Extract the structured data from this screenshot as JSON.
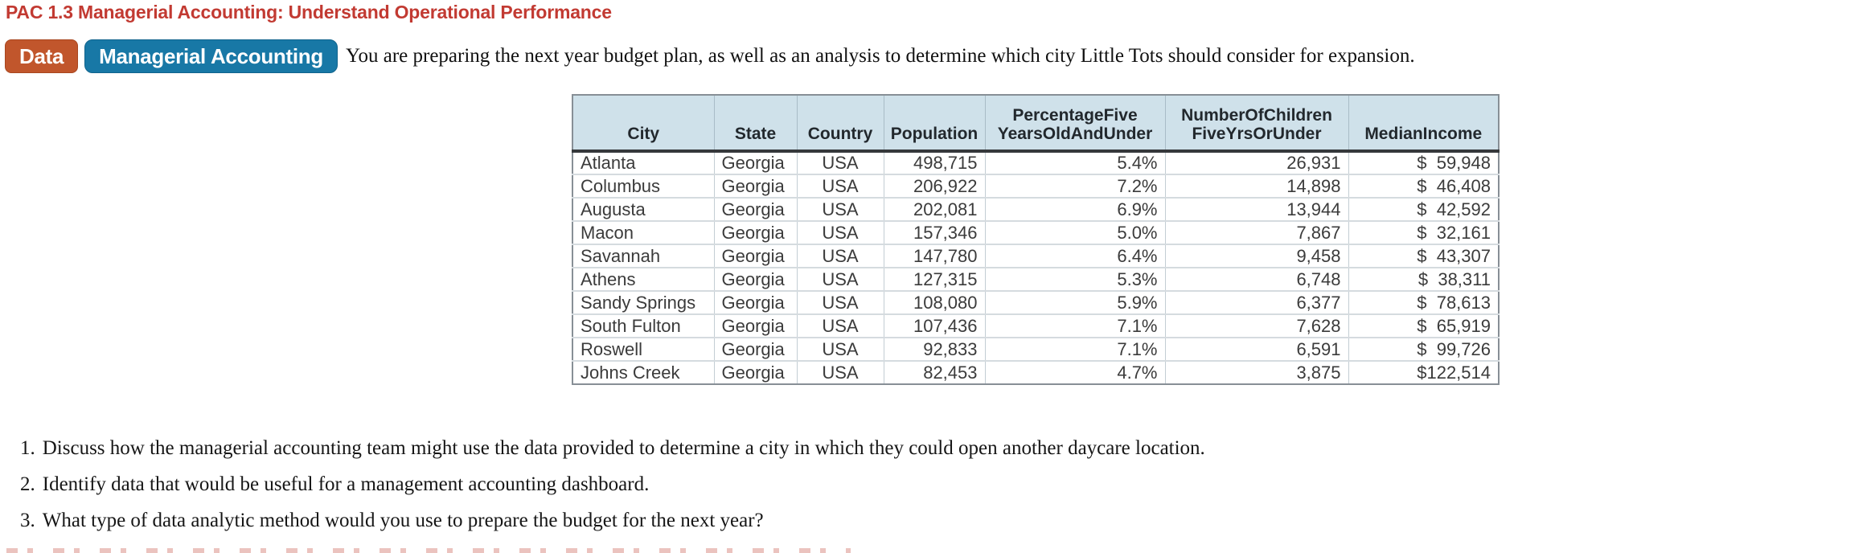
{
  "header": {
    "title": "PAC 1.3 Managerial Accounting: Understand Operational Performance",
    "title_color": "#c23a32"
  },
  "badges": {
    "data_label": "Data",
    "data_bg": "#c1562c",
    "topic_label": "Managerial Accounting",
    "topic_bg": "#1878a6"
  },
  "intro": {
    "text": "You are preparing the next year budget plan, as well as an analysis to determine which city Little Tots should consider for expansion."
  },
  "table": {
    "header_bg": "#cfe1ea",
    "columns": [
      {
        "key": "city",
        "label": "City",
        "align": "left"
      },
      {
        "key": "state",
        "label": "State",
        "align": "left"
      },
      {
        "key": "country",
        "label": "Country",
        "align": "center"
      },
      {
        "key": "population",
        "label": "Population",
        "align": "right"
      },
      {
        "key": "pct_five",
        "label": "PercentageFive\nYearsOldAndUnder",
        "align": "right"
      },
      {
        "key": "num_children",
        "label": "NumberOfChildren\nFiveYrsOrUnder",
        "align": "right"
      },
      {
        "key": "median_income",
        "label": "MedianIncome",
        "align": "right"
      }
    ],
    "rows": [
      {
        "city": "Atlanta",
        "state": "Georgia",
        "country": "USA",
        "population": "498,715",
        "pct_five": "5.4%",
        "num_children": "26,931",
        "median_income": "$  59,948"
      },
      {
        "city": "Columbus",
        "state": "Georgia",
        "country": "USA",
        "population": "206,922",
        "pct_five": "7.2%",
        "num_children": "14,898",
        "median_income": "$  46,408"
      },
      {
        "city": "Augusta",
        "state": "Georgia",
        "country": "USA",
        "population": "202,081",
        "pct_five": "6.9%",
        "num_children": "13,944",
        "median_income": "$  42,592"
      },
      {
        "city": "Macon",
        "state": "Georgia",
        "country": "USA",
        "population": "157,346",
        "pct_five": "5.0%",
        "num_children": "7,867",
        "median_income": "$  32,161"
      },
      {
        "city": "Savannah",
        "state": "Georgia",
        "country": "USA",
        "population": "147,780",
        "pct_five": "6.4%",
        "num_children": "9,458",
        "median_income": "$  43,307"
      },
      {
        "city": "Athens",
        "state": "Georgia",
        "country": "USA",
        "population": "127,315",
        "pct_five": "5.3%",
        "num_children": "6,748",
        "median_income": "$  38,311"
      },
      {
        "city": "Sandy Springs",
        "state": "Georgia",
        "country": "USA",
        "population": "108,080",
        "pct_five": "5.9%",
        "num_children": "6,377",
        "median_income": "$  78,613"
      },
      {
        "city": "South Fulton",
        "state": "Georgia",
        "country": "USA",
        "population": "107,436",
        "pct_five": "7.1%",
        "num_children": "7,628",
        "median_income": "$  65,919"
      },
      {
        "city": "Roswell",
        "state": "Georgia",
        "country": "USA",
        "population": "92,833",
        "pct_five": "7.1%",
        "num_children": "6,591",
        "median_income": "$  99,726"
      },
      {
        "city": "Johns Creek",
        "state": "Georgia",
        "country": "USA",
        "population": "82,453",
        "pct_five": "4.7%",
        "num_children": "3,875",
        "median_income": "$122,514"
      }
    ]
  },
  "questions": {
    "items": [
      {
        "number": "1.",
        "text": "Discuss how the managerial accounting team might use the data provided to determine a city in which they could open another daycare location."
      },
      {
        "number": "2.",
        "text": "Identify data that would be useful for a management accounting dashboard."
      },
      {
        "number": "3.",
        "text": "What type of data analytic method would you use to prepare the budget for the next year?"
      }
    ]
  }
}
